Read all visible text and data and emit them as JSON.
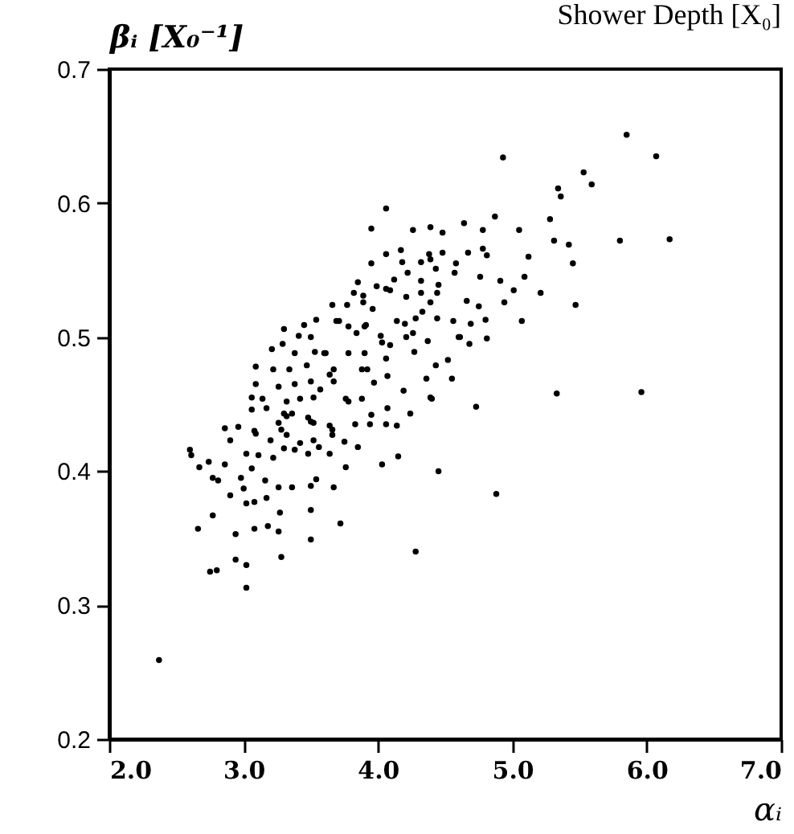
{
  "chart_data": {
    "type": "scatter",
    "xlabel": "αᵢ",
    "ylabel": "βᵢ [X₀⁻¹]",
    "annotations": [
      "Shower Depth [X₀]"
    ],
    "color": "#000000",
    "marker": "circle",
    "grid": false,
    "xlim": [
      2,
      7
    ],
    "xticks": [
      {
        "value": 2,
        "label": "2.0"
      },
      {
        "value": 3,
        "label": "3.0"
      },
      {
        "value": 4,
        "label": "4.0"
      },
      {
        "value": 5,
        "label": "5.0"
      },
      {
        "value": 6,
        "label": "6.0"
      },
      {
        "value": 7,
        "label": "7.0"
      }
    ],
    "ylim": [
      0.2,
      0.7
    ],
    "yticks": [
      0.2,
      0.3,
      0.4,
      0.5,
      0.6,
      0.7
    ],
    "x": [
      2.37,
      5.85,
      6.07,
      4.93,
      5.53,
      5.59,
      5.34,
      5.36,
      6.17,
      5.8,
      5.96,
      5.33,
      5.47,
      4.73,
      5.42,
      5.31,
      5.45,
      5.28,
      5.12,
      5.21,
      5.09,
      5.01,
      4.94,
      5.07,
      4.91,
      4.81,
      4.76,
      4.78,
      4.87,
      5.05,
      4.78,
      4.64,
      4.66,
      4.75,
      4.8,
      4.69,
      4.81,
      4.61,
      4.68,
      4.52,
      4.43,
      4.55,
      4.36,
      4.4,
      4.19,
      4.24,
      4.07,
      4.14,
      4.06,
      3.94,
      3.83,
      3.64,
      3.95,
      3.88,
      3.76,
      4.07,
      3.97,
      4.06,
      3.92,
      3.64,
      4.06,
      3.95,
      4.26,
      4.39,
      4.48,
      4.06,
      4.17,
      4.32,
      4.39,
      4.48,
      4.58,
      4.67,
      3.95,
      4.18,
      4.43,
      4.22,
      4.12,
      4.32,
      4.57,
      4.09,
      3.85,
      3.99,
      4.21,
      4.32,
      4.44,
      4.39,
      4.45,
      3.82,
      3.66,
      3.77,
      3.89,
      3.96,
      4.33,
      4.44,
      4.56,
      4.14,
      4.2,
      4.26,
      4.28,
      3.69,
      3.78,
      3.84,
      3.9,
      4.02,
      4.03,
      4.09,
      4.21,
      4.37,
      4.27,
      4.6,
      3.78,
      3.9,
      3.6,
      3.89,
      4.06,
      3.71,
      3.91,
      3.45,
      3.54,
      3.3,
      3.41,
      3.5,
      3.29,
      3.21,
      3.53,
      3.61,
      3.38,
      3.09,
      3.22,
      3.34,
      3.47,
      3.67,
      3.88,
      3.09,
      3.26,
      3.38,
      3.5,
      3.57,
      3.67,
      3.78,
      3.06,
      3.14,
      3.32,
      3.42,
      3.52,
      3.06,
      3.17,
      3.3,
      3.36,
      3.48,
      3.52,
      3.26,
      2.96,
      3.08,
      3.28,
      3.66,
      4.39,
      4.38,
      3.32,
      3.5,
      2.86,
      2.9,
      3.09,
      3.2,
      3.32,
      3.42,
      3.52,
      3.56,
      3.66,
      3.75,
      3.85,
      2.6,
      2.61,
      2.67,
      2.74,
      2.86,
      3.02,
      3.11,
      3.22,
      3.3,
      3.38,
      3.48,
      3.64,
      3.76,
      4.03,
      4.15,
      4.45,
      3.06,
      2.77,
      2.81,
      2.98,
      3.16,
      3.26,
      3.36,
      3.5,
      3.54,
      3.67,
      2.9,
      3.0,
      3.08,
      3.02,
      3.17,
      3.5,
      3.27,
      2.77,
      2.66,
      2.94,
      3.08,
      3.18,
      3.26,
      3.5,
      3.72,
      4.28,
      3.28,
      2.94,
      3.02,
      2.75,
      2.8,
      3.02,
      4.88
    ],
    "values": [
      0.259,
      0.651,
      0.635,
      0.634,
      0.623,
      0.614,
      0.611,
      0.605,
      0.573,
      0.572,
      0.459,
      0.458,
      0.524,
      0.448,
      0.569,
      0.572,
      0.555,
      0.588,
      0.56,
      0.533,
      0.545,
      0.535,
      0.526,
      0.512,
      0.542,
      0.561,
      0.545,
      0.566,
      0.59,
      0.58,
      0.58,
      0.585,
      0.527,
      0.523,
      0.513,
      0.51,
      0.499,
      0.5,
      0.495,
      0.483,
      0.479,
      0.469,
      0.469,
      0.454,
      0.46,
      0.443,
      0.447,
      0.434,
      0.435,
      0.435,
      0.435,
      0.434,
      0.442,
      0.454,
      0.454,
      0.471,
      0.466,
      0.484,
      0.476,
      0.472,
      0.596,
      0.581,
      0.58,
      0.582,
      0.578,
      0.562,
      0.565,
      0.556,
      0.558,
      0.563,
      0.555,
      0.563,
      0.555,
      0.556,
      0.551,
      0.548,
      0.543,
      0.542,
      0.548,
      0.535,
      0.541,
      0.538,
      0.53,
      0.533,
      0.533,
      0.526,
      0.539,
      0.533,
      0.524,
      0.524,
      0.526,
      0.521,
      0.519,
      0.514,
      0.512,
      0.512,
      0.51,
      0.503,
      0.514,
      0.512,
      0.508,
      0.503,
      0.508,
      0.501,
      0.496,
      0.494,
      0.5,
      0.497,
      0.489,
      0.5,
      0.488,
      0.488,
      0.488,
      0.531,
      0.536,
      0.512,
      0.509,
      0.509,
      0.513,
      0.506,
      0.501,
      0.5,
      0.495,
      0.491,
      0.489,
      0.488,
      0.488,
      0.478,
      0.476,
      0.476,
      0.479,
      0.476,
      0.476,
      0.465,
      0.463,
      0.465,
      0.467,
      0.461,
      0.467,
      0.452,
      0.455,
      0.454,
      0.452,
      0.454,
      0.455,
      0.446,
      0.447,
      0.443,
      0.443,
      0.44,
      0.436,
      0.436,
      0.433,
      0.43,
      0.431,
      0.431,
      0.455,
      0.562,
      0.441,
      0.437,
      0.432,
      0.423,
      0.428,
      0.423,
      0.427,
      0.421,
      0.423,
      0.418,
      0.427,
      0.422,
      0.418,
      0.416,
      0.412,
      0.403,
      0.407,
      0.405,
      0.413,
      0.412,
      0.41,
      0.417,
      0.416,
      0.413,
      0.413,
      0.403,
      0.405,
      0.411,
      0.4,
      0.402,
      0.395,
      0.393,
      0.395,
      0.393,
      0.388,
      0.388,
      0.389,
      0.394,
      0.388,
      0.382,
      0.387,
      0.377,
      0.376,
      0.38,
      0.371,
      0.369,
      0.367,
      0.357,
      0.353,
      0.357,
      0.359,
      0.355,
      0.349,
      0.361,
      0.34,
      0.336,
      0.334,
      0.33,
      0.325,
      0.326,
      0.313,
      0.383
    ]
  }
}
